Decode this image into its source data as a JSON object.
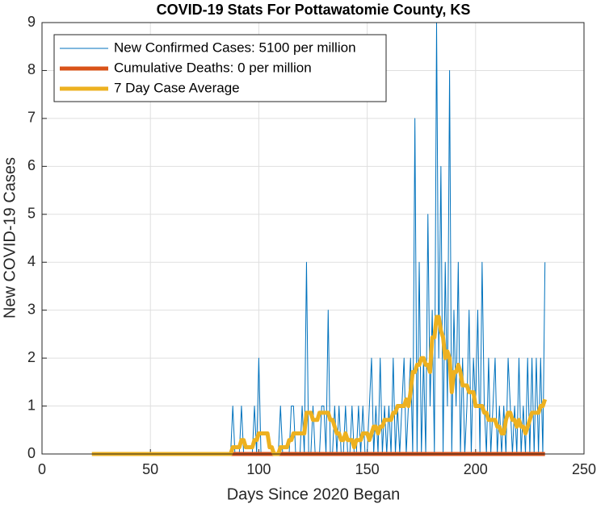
{
  "chart_data": {
    "type": "line",
    "title": "COVID-19 Stats For Pottawatomie County, KS",
    "x_label": "Days Since 2020 Began",
    "y_label": "New COVID-19 Cases",
    "xlim": [
      0,
      250
    ],
    "xticks": [
      0,
      50,
      100,
      150,
      200,
      250
    ],
    "ylim": [
      0,
      9
    ],
    "yticks": [
      0,
      1,
      2,
      3,
      4,
      5,
      6,
      7,
      8,
      9
    ],
    "grid": true,
    "legend": "upper left",
    "x": [
      23,
      24,
      25,
      26,
      27,
      28,
      29,
      30,
      31,
      32,
      33,
      34,
      35,
      36,
      37,
      38,
      39,
      40,
      41,
      42,
      43,
      44,
      45,
      46,
      47,
      48,
      49,
      50,
      51,
      52,
      53,
      54,
      55,
      56,
      57,
      58,
      59,
      60,
      61,
      62,
      63,
      64,
      65,
      66,
      67,
      68,
      69,
      70,
      71,
      72,
      73,
      74,
      75,
      76,
      77,
      78,
      79,
      80,
      81,
      82,
      83,
      84,
      85,
      86,
      87,
      88,
      89,
      90,
      91,
      92,
      93,
      94,
      95,
      96,
      97,
      98,
      99,
      100,
      101,
      102,
      103,
      104,
      105,
      106,
      107,
      108,
      109,
      110,
      111,
      112,
      113,
      114,
      115,
      116,
      117,
      118,
      119,
      120,
      121,
      122,
      123,
      124,
      125,
      126,
      127,
      128,
      129,
      130,
      131,
      132,
      133,
      134,
      135,
      136,
      137,
      138,
      139,
      140,
      141,
      142,
      143,
      144,
      145,
      146,
      147,
      148,
      149,
      150,
      151,
      152,
      153,
      154,
      155,
      156,
      157,
      158,
      159,
      160,
      161,
      162,
      163,
      164,
      165,
      166,
      167,
      168,
      169,
      170,
      171,
      172,
      173,
      174,
      175,
      176,
      177,
      178,
      179,
      180,
      181,
      182,
      183,
      184,
      185,
      186,
      187,
      188,
      189,
      190,
      191,
      192,
      193,
      194,
      195,
      196,
      197,
      198,
      199,
      200,
      201,
      202,
      203,
      204,
      205,
      206,
      207,
      208,
      209,
      210,
      211,
      212,
      213,
      214,
      215,
      216,
      217,
      218,
      219,
      220,
      221,
      222,
      223,
      224,
      225,
      226,
      227,
      228,
      229,
      230,
      231,
      232
    ],
    "series": [
      {
        "name": "New Confirmed Cases: 5100 per million",
        "color": "#0072bd",
        "width": 1,
        "values": [
          0,
          0,
          0,
          0,
          0,
          0,
          0,
          0,
          0,
          0,
          0,
          0,
          0,
          0,
          0,
          0,
          0,
          0,
          0,
          0,
          0,
          0,
          0,
          0,
          0,
          0,
          0,
          0,
          0,
          0,
          0,
          0,
          0,
          0,
          0,
          0,
          0,
          0,
          0,
          0,
          0,
          0,
          0,
          0,
          0,
          0,
          0,
          0,
          0,
          0,
          0,
          0,
          0,
          0,
          0,
          0,
          0,
          0,
          0,
          0,
          0,
          0,
          0,
          0,
          0,
          1,
          0,
          0,
          0,
          1,
          0,
          0,
          0,
          0,
          0,
          1,
          0,
          2,
          0,
          0,
          0,
          0,
          0,
          0,
          0,
          0,
          0,
          1,
          0,
          0,
          0,
          0,
          1,
          1,
          0,
          0,
          0,
          1,
          0,
          4,
          0,
          0,
          1,
          0,
          0,
          0,
          1,
          1,
          0,
          3,
          0,
          0,
          1,
          0,
          1,
          0,
          0,
          1,
          0,
          0,
          1,
          0,
          0,
          1,
          0,
          1,
          0,
          0,
          1,
          2,
          0,
          1,
          0,
          2,
          0,
          1,
          0,
          1,
          0,
          2,
          0,
          1,
          0,
          1,
          2,
          0,
          1,
          2,
          0,
          7,
          0,
          4,
          0,
          2,
          0,
          5,
          1,
          3,
          0,
          9,
          2,
          6,
          0,
          4,
          1,
          8,
          0,
          3,
          1,
          4,
          0,
          2,
          0,
          1,
          3,
          0,
          2,
          1,
          3,
          0,
          4,
          1,
          0,
          2,
          0,
          1,
          2,
          0,
          1,
          0,
          1,
          0,
          2,
          1,
          0,
          1,
          0,
          2,
          0,
          1,
          0,
          2,
          0,
          2,
          0,
          2,
          0,
          2,
          0,
          4
        ]
      },
      {
        "name": "Cumulative Deaths: 0 per million",
        "color": "#d95319",
        "width": 5,
        "values": [
          null,
          null,
          null,
          null,
          null,
          null,
          null,
          null,
          null,
          null,
          null,
          null,
          null,
          null,
          null,
          null,
          null,
          null,
          null,
          null,
          null,
          null,
          null,
          null,
          null,
          null,
          null,
          null,
          null,
          null,
          null,
          null,
          null,
          null,
          null,
          null,
          null,
          null,
          null,
          null,
          null,
          null,
          null,
          null,
          null,
          null,
          null,
          null,
          null,
          null,
          null,
          null,
          null,
          null,
          null,
          null,
          null,
          null,
          null,
          null,
          null,
          null,
          null,
          null,
          0,
          0,
          0,
          0,
          0,
          0,
          0,
          0,
          0,
          0,
          0,
          0,
          0,
          0,
          0,
          0,
          0,
          0,
          0,
          0,
          0,
          0,
          0,
          0,
          0,
          0,
          0,
          0,
          0,
          0,
          0,
          0,
          0,
          0,
          0,
          0,
          0,
          0,
          0,
          0,
          0,
          0,
          0,
          0,
          0,
          0,
          0,
          0,
          0,
          0,
          0,
          0,
          0,
          0,
          0,
          0,
          0,
          0,
          0,
          0,
          0,
          0,
          0,
          0,
          0,
          0,
          0,
          0,
          0,
          0,
          0,
          0,
          0,
          0,
          0,
          0,
          0,
          0,
          0,
          0,
          0,
          0,
          0,
          0,
          0,
          0,
          0,
          0,
          0,
          0,
          0,
          0,
          0,
          0,
          0,
          0,
          0,
          0,
          0,
          0,
          0,
          0,
          0,
          0,
          0,
          0,
          0,
          0,
          0,
          0,
          0,
          0,
          0,
          0,
          0,
          0,
          0,
          0,
          0,
          0,
          0,
          0,
          0,
          0,
          0,
          0,
          0,
          0,
          0,
          0,
          0,
          0,
          0,
          0,
          0,
          0,
          0,
          0,
          0,
          0,
          0,
          0,
          0,
          0,
          0,
          0
        ]
      },
      {
        "name": "7 Day Case Average",
        "color": "#edb120",
        "width": 5,
        "values": [
          0,
          0,
          0,
          0,
          0,
          0,
          0,
          0,
          0,
          0,
          0,
          0,
          0,
          0,
          0,
          0,
          0,
          0,
          0,
          0,
          0,
          0,
          0,
          0,
          0,
          0,
          0,
          0,
          0,
          0,
          0,
          0,
          0,
          0,
          0,
          0,
          0,
          0,
          0,
          0,
          0,
          0,
          0,
          0,
          0,
          0,
          0,
          0,
          0,
          0,
          0,
          0,
          0,
          0,
          0,
          0,
          0,
          0,
          0,
          0,
          0,
          0,
          0,
          0,
          0,
          0.14,
          0.14,
          0.14,
          0.14,
          0.29,
          0.29,
          0.14,
          0.14,
          0.14,
          0.14,
          0.29,
          0.29,
          0.43,
          0.43,
          0.43,
          0.43,
          0.43,
          0.14,
          0.14,
          0,
          0,
          0,
          0.14,
          0.14,
          0.14,
          0.14,
          0.29,
          0.29,
          0.43,
          0.43,
          0.43,
          0.43,
          0.43,
          0.43,
          0.86,
          0.86,
          0.86,
          0.71,
          0.71,
          0.71,
          0.86,
          0.86,
          0.86,
          0.86,
          0.86,
          0.71,
          0.71,
          0.57,
          0.43,
          0.43,
          0.29,
          0.29,
          0.43,
          0.29,
          0.29,
          0.29,
          0.14,
          0.29,
          0.29,
          0.29,
          0.43,
          0.43,
          0.43,
          0.29,
          0.43,
          0.57,
          0.57,
          0.43,
          0.57,
          0.57,
          0.71,
          0.71,
          0.71,
          0.71,
          0.86,
          0.86,
          1,
          1,
          1,
          1,
          1.14,
          1,
          1.29,
          1.71,
          1.71,
          1.86,
          1.86,
          2,
          2,
          1.86,
          1.86,
          1.71,
          2.43,
          2.43,
          2.86,
          2.86,
          2.57,
          2.43,
          2,
          2.14,
          2,
          1.29,
          1.71,
          1.71,
          1.86,
          1.71,
          1.43,
          1.43,
          1.43,
          1.29,
          1.29,
          1.29,
          1,
          1,
          1,
          1,
          0.86,
          0.86,
          0.71,
          0.71,
          0.71,
          0.71,
          0.57,
          0.57,
          0.43,
          0.43,
          0.71,
          0.86,
          0.86,
          0.71,
          0.71,
          0.57,
          0.71,
          0.57,
          0.57,
          0.43,
          0.57,
          0.71,
          0.86,
          0.86,
          0.86,
          0.86,
          1,
          1,
          1.14
        ]
      }
    ]
  }
}
